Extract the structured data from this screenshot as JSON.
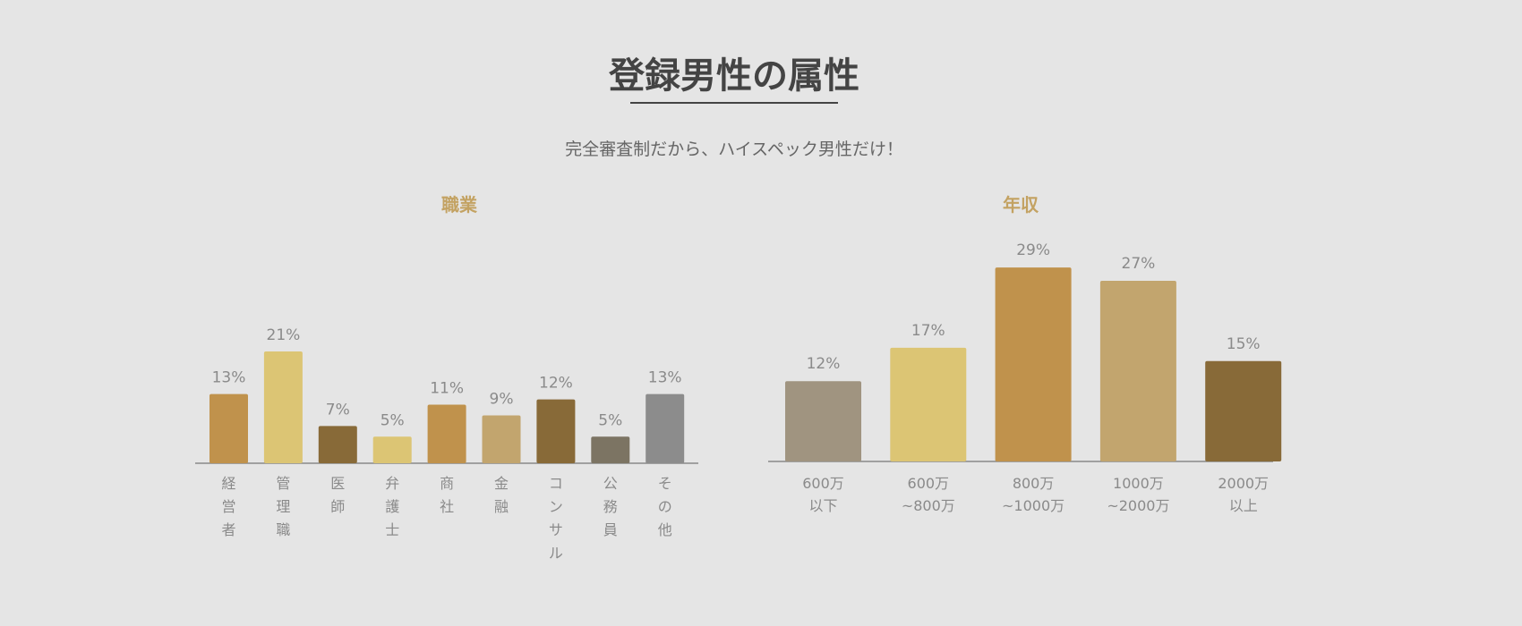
{
  "page": {
    "title": "登録男性の属性",
    "subtitle": "完全審査制だから、ハイスペック男性だけ！"
  },
  "chart_data": [
    {
      "type": "bar",
      "title": "職業",
      "unit": "%",
      "categories": [
        "経営者",
        "管理職",
        "医師",
        "弁護士",
        "商社",
        "金融",
        "コンサル",
        "公務員",
        "その他"
      ],
      "values": [
        13,
        21,
        7,
        5,
        11,
        9,
        12,
        5,
        13
      ],
      "colors": [
        "#c0924c",
        "#dcc574",
        "#886a38",
        "#dcc574",
        "#c0924c",
        "#c2a56e",
        "#886a38",
        "#7c7463",
        "#8c8c8c"
      ],
      "label_orientation": "vertical"
    },
    {
      "type": "bar",
      "title": "年収",
      "unit": "%",
      "categories": [
        "600万\n以下",
        "600万\n~800万",
        "800万\n~1000万",
        "1000万\n~2000万",
        "2000万\n以上"
      ],
      "values": [
        12,
        17,
        29,
        27,
        15
      ],
      "colors": [
        "#a09480",
        "#dcc574",
        "#c0924c",
        "#c2a56e",
        "#886a38"
      ],
      "label_orientation": "horizontal"
    }
  ]
}
